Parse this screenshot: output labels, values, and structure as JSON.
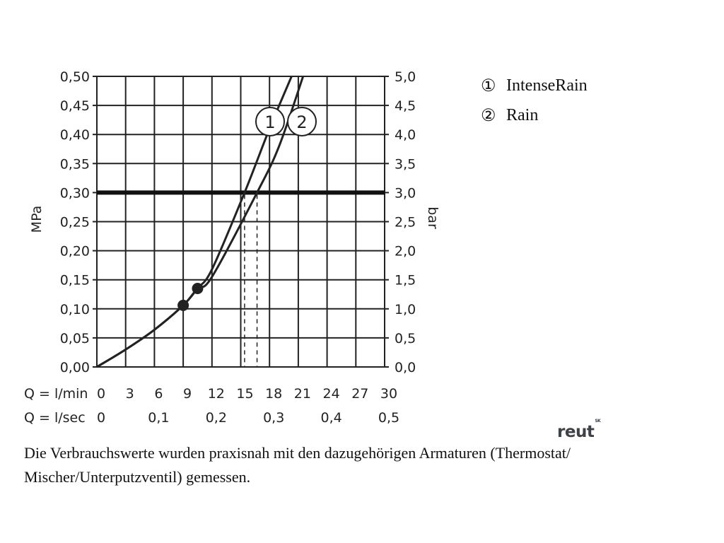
{
  "chart_data": {
    "type": "line",
    "left_axis": {
      "label": "MPa",
      "range": [
        0,
        0.5
      ],
      "ticks": [
        "0,00",
        "0,05",
        "0,10",
        "0,15",
        "0,20",
        "0,25",
        "0,30",
        "0,35",
        "0,40",
        "0,45",
        "0,50"
      ]
    },
    "right_axis": {
      "label": "bar",
      "range": [
        0,
        5.0
      ],
      "ticks": [
        "0,0",
        "0,5",
        "1,0",
        "1,5",
        "2,0",
        "2,5",
        "3,0",
        "3,5",
        "4,0",
        "4,5",
        "5,0"
      ]
    },
    "x_axes": [
      {
        "label": "Q = l/min",
        "range": [
          0,
          30
        ],
        "ticks": [
          "0",
          "3",
          "6",
          "9",
          "12",
          "15",
          "18",
          "21",
          "24",
          "27",
          "30"
        ],
        "tick_values": [
          0,
          3,
          6,
          9,
          12,
          15,
          18,
          21,
          24,
          27,
          30
        ]
      },
      {
        "label": "Q = l/sec",
        "range": [
          0,
          0.5
        ],
        "ticks": [
          "0",
          "0,1",
          "0,2",
          "0,3",
          "0,4",
          "0,5"
        ],
        "tick_values": [
          0,
          0.1,
          0.2,
          0.3,
          0.4,
          0.5
        ]
      }
    ],
    "grid": true,
    "reference_line": {
      "y": 0.3,
      "style": "thick"
    },
    "series": [
      {
        "name": "IntenseRain",
        "marker_label": "1",
        "x": [
          0,
          3,
          6,
          9,
          10.5,
          12,
          15.4,
          18,
          20.3
        ],
        "y": [
          0,
          0.03,
          0.064,
          0.106,
          0.135,
          0.168,
          0.3,
          0.41,
          0.5
        ],
        "dot": {
          "x": 10.5,
          "y": 0.135
        },
        "drop_at": 15.4
      },
      {
        "name": "Rain",
        "marker_label": "2",
        "x": [
          0,
          3,
          6,
          9,
          10.5,
          12,
          16.7,
          19,
          21.5
        ],
        "y": [
          0,
          0.03,
          0.064,
          0.106,
          0.135,
          0.155,
          0.3,
          0.38,
          0.5
        ],
        "dot": {
          "x": 9,
          "y": 0.106
        },
        "drop_at": 16.7
      }
    ]
  },
  "legend": [
    {
      "num": "①",
      "name": "IntenseRain"
    },
    {
      "num": "②",
      "name": "Rain"
    }
  ],
  "note": "Die Verbrauchswerte wurden praxisnah mit den dazugehörigen Armaturen (Thermostat/ Mischer/Unterputzventil) gemessen.",
  "brand": {
    "text": "reut",
    "sup": "SK"
  }
}
